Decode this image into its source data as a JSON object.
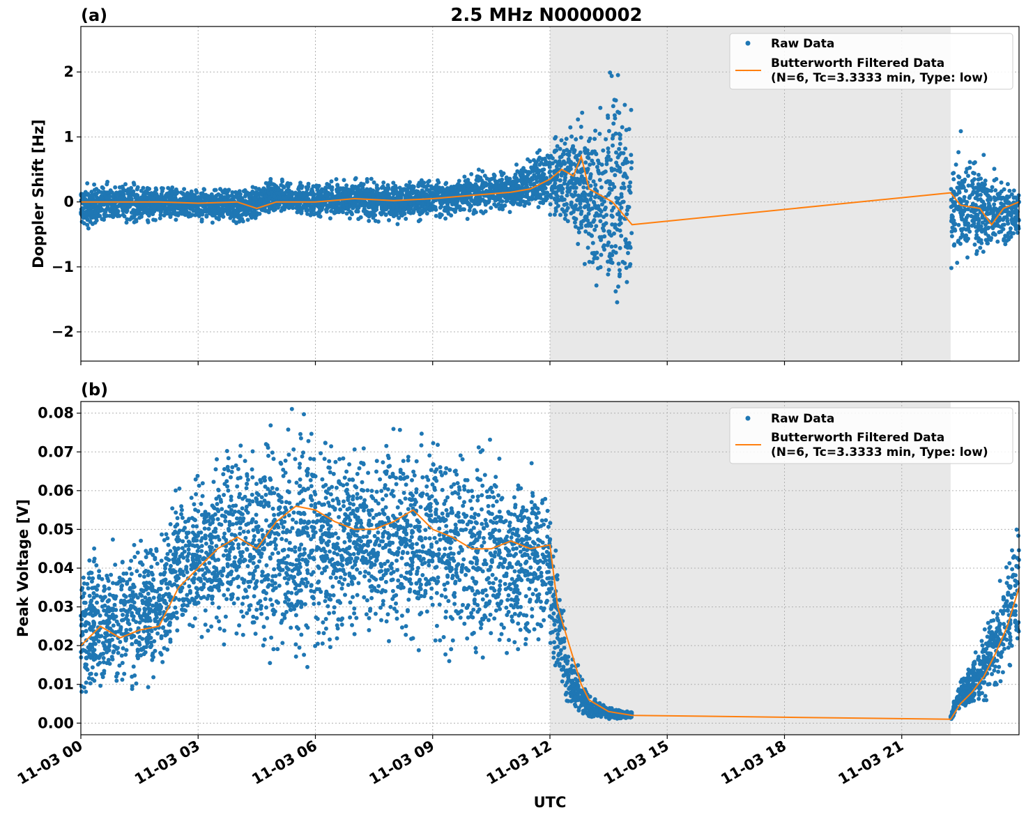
{
  "figure": {
    "title": "2.5 MHz N0000002",
    "xlabel": "UTC",
    "x_ticks": [
      "11-03 00",
      "11-03 03",
      "11-03 06",
      "11-03 09",
      "11-03 12",
      "11-03 15",
      "11-03 18",
      "11-03 21"
    ],
    "shaded_region_hours": [
      12,
      22.25
    ],
    "colors": {
      "raw": "#1f77b4",
      "filtered": "#ff7f0e",
      "shade": "#e8e8e8"
    }
  },
  "legend": {
    "raw": "Raw Data",
    "filtered_line1": "Butterworth Filtered Data",
    "filtered_line2": "(N=6, Tc=3.3333 min, Type: low)"
  },
  "chart_data": [
    {
      "type": "scatter",
      "panel_label": "(a)",
      "ylabel": "Doppler Shift [Hz]",
      "xlim_hours": [
        0,
        24
      ],
      "ylim": [
        -2.45,
        2.7
      ],
      "y_ticks": [
        "2",
        "1",
        "0",
        "−1",
        "−2"
      ],
      "y_tick_values": [
        2,
        1,
        0,
        -1,
        -2
      ],
      "grid": true,
      "legend_position": "top-right",
      "series": [
        {
          "name": "Raw Data",
          "style": "points",
          "envelope": {
            "x": [
              0,
              1,
              2,
              3,
              4,
              5,
              6,
              7,
              8,
              9,
              10,
              11,
              11.5,
              12,
              12.5,
              13,
              13.5,
              14.1
            ],
            "upper": [
              0.25,
              0.3,
              0.25,
              0.22,
              0.2,
              0.35,
              0.3,
              0.35,
              0.3,
              0.35,
              0.45,
              0.55,
              0.7,
              0.9,
              1.2,
              1.3,
              2.0,
              1.8
            ],
            "lower": [
              -0.4,
              -0.35,
              -0.3,
              -0.3,
              -0.35,
              -0.2,
              -0.25,
              -0.25,
              -0.3,
              -0.25,
              -0.2,
              -0.15,
              -0.1,
              -0.15,
              -0.4,
              -1.2,
              -1.8,
              -1.7
            ]
          },
          "envelope2": {
            "x": [
              22.25,
              22.5,
              23,
              23.5,
              24
            ],
            "upper": [
              0.9,
              0.9,
              0.6,
              0.5,
              0.2
            ],
            "lower": [
              -1.1,
              -1.0,
              -0.8,
              -0.8,
              -0.5
            ]
          }
        },
        {
          "name": "Butterworth Filtered Data (N=6, Tc=3.3333 min, Type: low)",
          "style": "line",
          "x": [
            0,
            1,
            2,
            3,
            4,
            4.5,
            5,
            6,
            7,
            8,
            9,
            10,
            11,
            11.5,
            12,
            12.3,
            12.6,
            12.8,
            13,
            13.3,
            13.6,
            14.1,
            22.25,
            22.5,
            23,
            23.3,
            23.6,
            24
          ],
          "y": [
            0.0,
            0.0,
            0.0,
            -0.02,
            0.0,
            -0.1,
            0.0,
            0.0,
            0.05,
            0.02,
            0.05,
            0.1,
            0.15,
            0.2,
            0.35,
            0.5,
            0.4,
            0.7,
            0.2,
            0.1,
            0.0,
            -0.35,
            0.14,
            -0.05,
            -0.1,
            -0.35,
            -0.1,
            0.0
          ]
        }
      ]
    },
    {
      "type": "scatter",
      "panel_label": "(b)",
      "ylabel": "Peak Voltage [V]",
      "xlim_hours": [
        0,
        24
      ],
      "ylim": [
        -0.003,
        0.083
      ],
      "y_ticks": [
        "0.08",
        "0.07",
        "0.06",
        "0.05",
        "0.04",
        "0.03",
        "0.02",
        "0.01",
        "0.00"
      ],
      "y_tick_values": [
        0.08,
        0.07,
        0.06,
        0.05,
        0.04,
        0.03,
        0.02,
        0.01,
        0.0
      ],
      "grid": true,
      "legend_position": "top-right",
      "series": [
        {
          "name": "Raw Data",
          "style": "points",
          "envelope": {
            "x": [
              0,
              1,
              2,
              2.5,
              3,
              4,
              5,
              5.5,
              6,
              7,
              8,
              9,
              10,
              11,
              11.9,
              12.2,
              12.5,
              13,
              13.5,
              14.1
            ],
            "upper": [
              0.045,
              0.045,
              0.05,
              0.06,
              0.065,
              0.072,
              0.075,
              0.078,
              0.075,
              0.072,
              0.075,
              0.075,
              0.072,
              0.068,
              0.065,
              0.04,
              0.02,
              0.008,
              0.004,
              0.003
            ],
            "lower": [
              0.005,
              0.007,
              0.01,
              0.02,
              0.022,
              0.02,
              0.02,
              0.015,
              0.02,
              0.02,
              0.02,
              0.022,
              0.015,
              0.018,
              0.02,
              0.01,
              0.003,
              0.001,
              0.001,
              0.001
            ]
          },
          "envelope2": {
            "x": [
              22.25,
              22.5,
              23,
              23.5,
              24
            ],
            "upper": [
              0.002,
              0.012,
              0.02,
              0.035,
              0.058
            ],
            "lower": [
              0.0005,
              0.002,
              0.005,
              0.01,
              0.015
            ]
          }
        },
        {
          "name": "Butterworth Filtered Data (N=6, Tc=3.3333 min, Type: low)",
          "style": "line",
          "x": [
            0,
            0.5,
            1,
            1.5,
            2,
            2.5,
            3,
            3.5,
            4,
            4.5,
            5,
            5.5,
            6,
            6.5,
            7,
            7.5,
            8,
            8.5,
            9,
            9.5,
            10,
            10.5,
            11,
            11.5,
            12,
            12.2,
            12.5,
            12.8,
            13,
            13.5,
            14.1,
            22.25,
            22.5,
            22.8,
            23.1,
            23.4,
            23.7,
            24
          ],
          "y": [
            0.02,
            0.025,
            0.022,
            0.024,
            0.025,
            0.035,
            0.04,
            0.045,
            0.048,
            0.045,
            0.052,
            0.056,
            0.055,
            0.052,
            0.05,
            0.05,
            0.052,
            0.055,
            0.05,
            0.048,
            0.045,
            0.045,
            0.047,
            0.045,
            0.046,
            0.03,
            0.02,
            0.01,
            0.006,
            0.003,
            0.002,
            0.001,
            0.005,
            0.008,
            0.012,
            0.018,
            0.025,
            0.035
          ]
        }
      ]
    }
  ]
}
